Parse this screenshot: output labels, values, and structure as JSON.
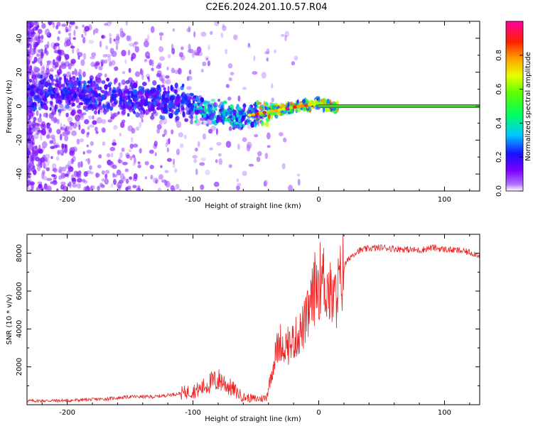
{
  "title": "C2E6.2024.201.10.57.R04",
  "chart_data": [
    {
      "type": "heatmap",
      "title": "C2E6.2024.201.10.57.R04",
      "xlabel": "Height of straight line (km)",
      "ylabel": "Frequency (Hz)",
      "xlim": [
        -232,
        128
      ],
      "ylim": [
        -50,
        50
      ],
      "xticks": [
        -200,
        -100,
        0,
        100
      ],
      "yticks": [
        -40,
        -20,
        0,
        20,
        40
      ],
      "xtick_labels": [
        "-200",
        "-100",
        "0",
        "100"
      ],
      "ytick_labels": [
        "-40",
        "-20",
        "0",
        "20",
        "40"
      ],
      "colorbar": {
        "label": "Normalized spectral amplitude",
        "range": [
          0.0,
          1.0
        ],
        "ticks": [
          0.0,
          0.2,
          0.4,
          0.6,
          0.8
        ],
        "tick_labels": [
          "0.0",
          "0.2",
          "0.4",
          "0.6",
          "0.8"
        ],
        "colors": [
          "#ffffff",
          "#8a00ff",
          "#1a00ff",
          "#00c8ff",
          "#00ff40",
          "#c8ff00",
          "#ffb400",
          "#ff0000",
          "#ff0090"
        ]
      },
      "ridge": {
        "x": [
          -232,
          -200,
          -170,
          -140,
          -110,
          -90,
          -75,
          -60,
          -45,
          -30,
          -15,
          -5,
          0,
          10,
          128
        ],
        "frequency": [
          7,
          8,
          6,
          4,
          2,
          -3,
          -5,
          -6,
          -4,
          -2,
          0,
          1,
          2,
          0,
          0
        ]
      }
    },
    {
      "type": "line",
      "xlabel": "Height of straight line (km)",
      "ylabel": "SNR (10 * v/v)",
      "xlim": [
        -232,
        128
      ],
      "ylim": [
        0,
        9000
      ],
      "xticks": [
        -200,
        -100,
        0,
        100
      ],
      "yticks": [
        2000,
        4000,
        6000,
        8000
      ],
      "xtick_labels": [
        "-200",
        "-100",
        "0",
        "100"
      ],
      "ytick_labels": [
        "2000",
        "4000",
        "6000",
        "8000"
      ],
      "series": [
        {
          "name": "SNR",
          "color": "#ee2222",
          "x": [
            -232,
            -200,
            -170,
            -150,
            -130,
            -110,
            -95,
            -85,
            -78,
            -70,
            -60,
            -50,
            -42,
            -38,
            -34,
            -30,
            -25,
            -20,
            -15,
            -10,
            -6,
            -3,
            0,
            3,
            6,
            9,
            12,
            16,
            20,
            25,
            30,
            40,
            50,
            60,
            70,
            80,
            90,
            100,
            110,
            120,
            128
          ],
          "y": [
            200,
            220,
            300,
            420,
            420,
            600,
            800,
            1200,
            1300,
            900,
            400,
            300,
            350,
            1500,
            2800,
            3400,
            3000,
            3400,
            3800,
            4400,
            5300,
            6200,
            6500,
            6700,
            6300,
            5800,
            5400,
            6200,
            7300,
            7800,
            8100,
            8250,
            8300,
            8250,
            8200,
            8150,
            8300,
            8200,
            8150,
            8050,
            7900
          ]
        }
      ]
    }
  ]
}
